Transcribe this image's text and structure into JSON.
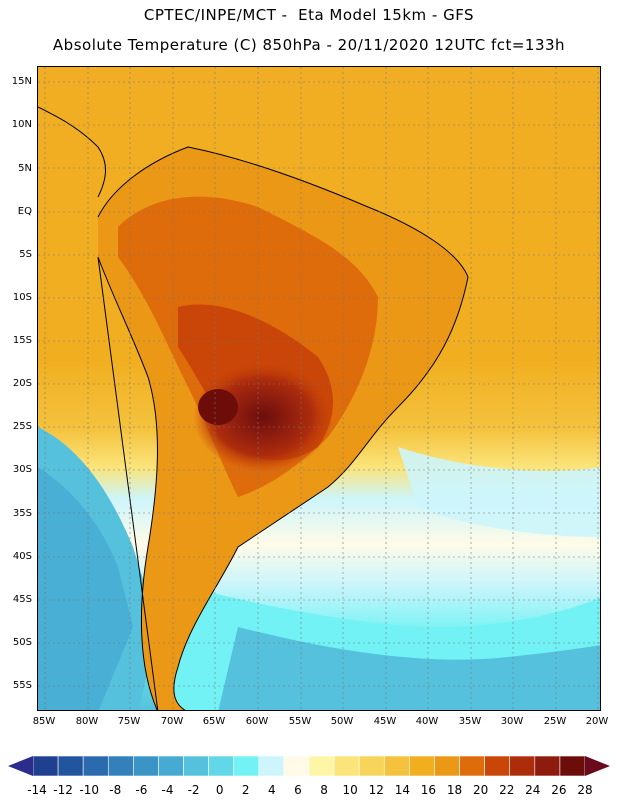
{
  "header": {
    "line1": "CPTEC/INPE/MCT -  Eta Model 15km - GFS",
    "line2": "Absolute Temperature (C) 850hPa - 20/11/2020 12UTC fct=133h"
  },
  "lat_labels": [
    "15N",
    "10N",
    "5N",
    "EQ",
    "5S",
    "10S",
    "15S",
    "20S",
    "25S",
    "30S",
    "35S",
    "40S",
    "45S",
    "50S",
    "55S"
  ],
  "lon_labels": [
    "85W",
    "80W",
    "75W",
    "70W",
    "65W",
    "60W",
    "55W",
    "50W",
    "45W",
    "40W",
    "35W",
    "30W",
    "25W",
    "20W"
  ],
  "colorbar": {
    "ticks": [
      "-14",
      "-12",
      "-10",
      "-8",
      "-6",
      "-4",
      "-2",
      "0",
      "2",
      "4",
      "6",
      "8",
      "10",
      "12",
      "14",
      "16",
      "18",
      "20",
      "22",
      "24",
      "26",
      "28"
    ],
    "colors": [
      "#1f3f8f",
      "#23559f",
      "#2a6aad",
      "#3380ba",
      "#3a95c6",
      "#46aad2",
      "#55c1dd",
      "#61d7e7",
      "#72f2f4",
      "#cdf5fb",
      "#fffbe8",
      "#fff5a6",
      "#fbe47a",
      "#f7d45a",
      "#f4c23d",
      "#f1ae1f",
      "#ec9817",
      "#de6c0a",
      "#c94508",
      "#ad2c0c",
      "#8d1c0f",
      "#6c0d0a"
    ],
    "left_arrow": "#2c2c8c",
    "right_arrow": "#6b0a1e"
  }
}
